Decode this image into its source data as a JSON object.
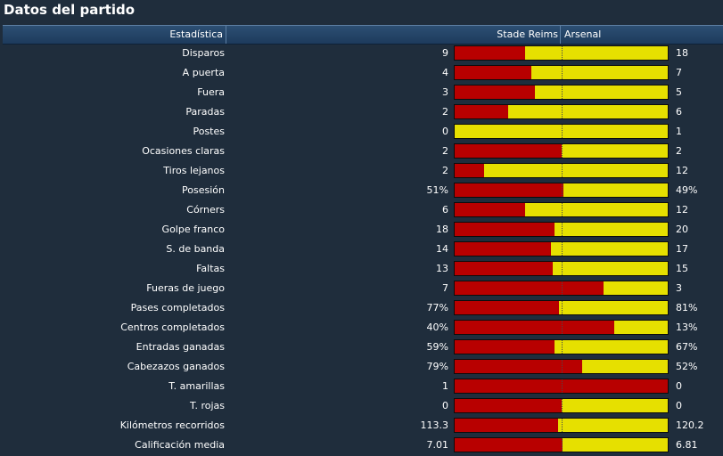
{
  "title": "Datos del partido",
  "header": {
    "stat": "Estadística",
    "home": "Stade Reims",
    "away": "Arsenal"
  },
  "colors": {
    "home": "#b80000",
    "away": "#e6e000",
    "header": "#1d3b5c",
    "background": "#1f2d3c"
  },
  "rows": [
    {
      "label": "Disparos",
      "home": "9",
      "away": "18",
      "home_share": 0.33
    },
    {
      "label": "A puerta",
      "home": "4",
      "away": "7",
      "home_share": 0.36
    },
    {
      "label": "Fuera",
      "home": "3",
      "away": "5",
      "home_share": 0.375
    },
    {
      "label": "Paradas",
      "home": "2",
      "away": "6",
      "home_share": 0.25
    },
    {
      "label": "Postes",
      "home": "0",
      "away": "1",
      "home_share": 0.0
    },
    {
      "label": "Ocasiones claras",
      "home": "2",
      "away": "2",
      "home_share": 0.5
    },
    {
      "label": "Tiros lejanos",
      "home": "2",
      "away": "12",
      "home_share": 0.14
    },
    {
      "label": "Posesión",
      "home": "51%",
      "away": "49%",
      "home_share": 0.51
    },
    {
      "label": "Córners",
      "home": "6",
      "away": "12",
      "home_share": 0.33
    },
    {
      "label": "Golpe franco",
      "home": "18",
      "away": "20",
      "home_share": 0.47
    },
    {
      "label": "S. de banda",
      "home": "14",
      "away": "17",
      "home_share": 0.45
    },
    {
      "label": "Faltas",
      "home": "13",
      "away": "15",
      "home_share": 0.46
    },
    {
      "label": "Fueras de juego",
      "home": "7",
      "away": "3",
      "home_share": 0.7
    },
    {
      "label": "Pases completados",
      "home": "77%",
      "away": "81%",
      "home_share": 0.49
    },
    {
      "label": "Centros completados",
      "home": "40%",
      "away": "13%",
      "home_share": 0.75
    },
    {
      "label": "Entradas ganadas",
      "home": "59%",
      "away": "67%",
      "home_share": 0.47
    },
    {
      "label": "Cabezazos ganados",
      "home": "79%",
      "away": "52%",
      "home_share": 0.6
    },
    {
      "label": "T. amarillas",
      "home": "1",
      "away": "0",
      "home_share": 1.0
    },
    {
      "label": "T. rojas",
      "home": "0",
      "away": "0",
      "home_share": 0.5
    },
    {
      "label": "Kilómetros recorridos",
      "home": "113.3",
      "away": "120.2",
      "home_share": 0.485
    },
    {
      "label": "Calificación media",
      "home": "7.01",
      "away": "6.81",
      "home_share": 0.507
    }
  ]
}
